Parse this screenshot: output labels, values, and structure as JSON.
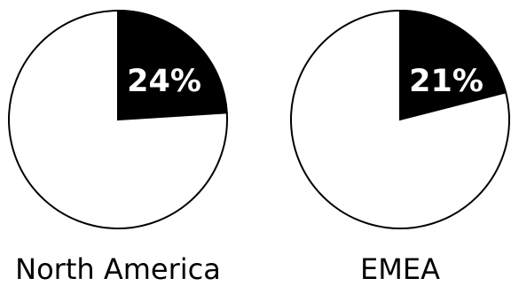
{
  "chart_data": [
    {
      "type": "pie",
      "label": "North America",
      "value_percent": 24,
      "value_label": "24%",
      "highlight_color": "#000000",
      "remainder_color": "#ffffff",
      "text_color_on_highlight": "#ffffff"
    },
    {
      "type": "pie",
      "label": "EMEA",
      "value_percent": 21,
      "value_label": "21%",
      "highlight_color": "#000000",
      "remainder_color": "#ffffff",
      "text_color_on_highlight": "#ffffff"
    }
  ]
}
